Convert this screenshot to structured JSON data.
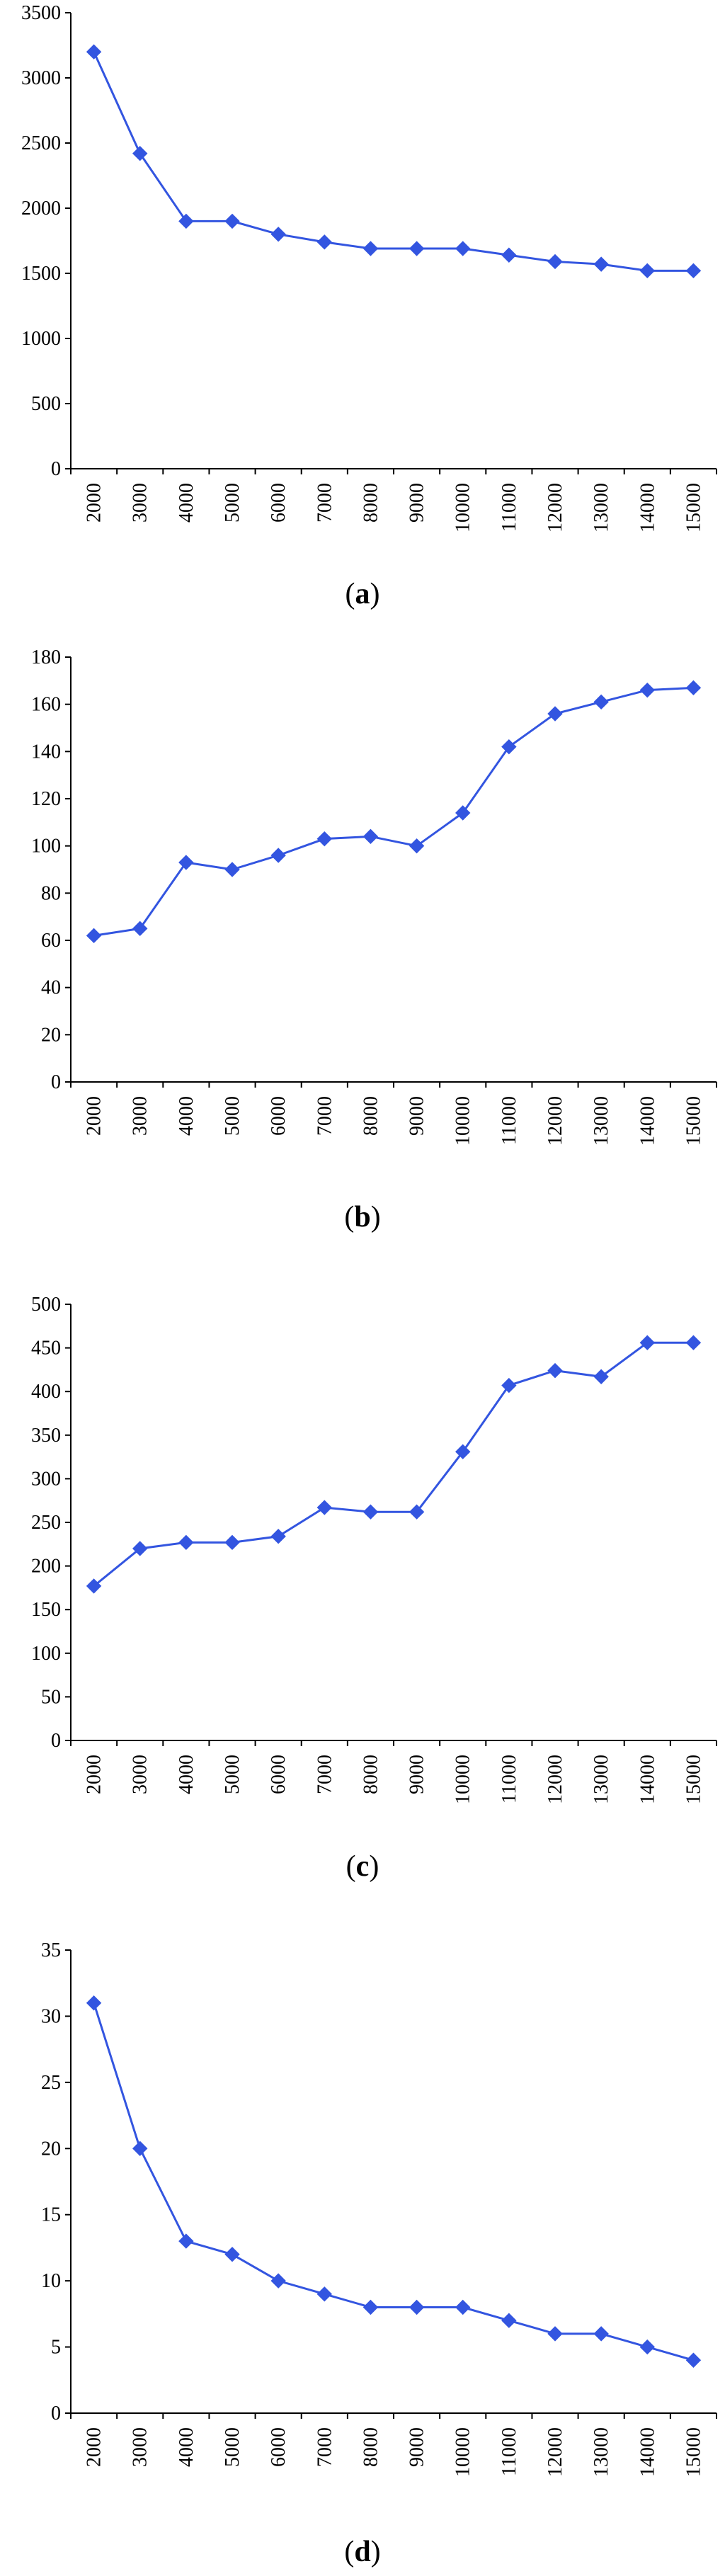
{
  "chart_data": [
    {
      "type": "line",
      "caption": "a",
      "categories": [
        "2000",
        "3000",
        "4000",
        "5000",
        "6000",
        "7000",
        "8000",
        "9000",
        "10000",
        "11000",
        "12000",
        "13000",
        "14000",
        "15000"
      ],
      "values": [
        3200,
        2420,
        1900,
        1900,
        1800,
        1740,
        1690,
        1690,
        1690,
        1640,
        1590,
        1570,
        1520,
        1520
      ],
      "ylim": [
        0,
        3500
      ],
      "yticks": [
        0,
        500,
        1000,
        1500,
        2000,
        2500,
        3000,
        3500
      ],
      "ytick_labels": [
        "0",
        "500",
        "1000",
        "1500",
        "2000",
        "2500",
        "3000",
        "3500"
      ],
      "color": "#3355e0",
      "grid": false
    },
    {
      "type": "line",
      "caption": "b",
      "categories": [
        "2000",
        "3000",
        "4000",
        "5000",
        "6000",
        "7000",
        "8000",
        "9000",
        "10000",
        "11000",
        "12000",
        "13000",
        "14000",
        "15000"
      ],
      "values": [
        62,
        65,
        93,
        90,
        96,
        103,
        104,
        100,
        114,
        142,
        156,
        161,
        166,
        167
      ],
      "ylim": [
        0,
        180
      ],
      "yticks": [
        0,
        20,
        40,
        60,
        80,
        100,
        120,
        140,
        160,
        180
      ],
      "ytick_labels": [
        "0",
        "20",
        "40",
        "60",
        "80",
        "100",
        "120",
        "140",
        "160",
        "180"
      ],
      "color": "#3355e0",
      "grid": false
    },
    {
      "type": "line",
      "caption": "c",
      "categories": [
        "2000",
        "3000",
        "4000",
        "5000",
        "6000",
        "7000",
        "8000",
        "9000",
        "10000",
        "11000",
        "12000",
        "13000",
        "14000",
        "15000"
      ],
      "values": [
        177,
        220,
        227,
        227,
        234,
        267,
        262,
        262,
        331,
        407,
        424,
        417,
        456,
        456
      ],
      "ylim": [
        0,
        500
      ],
      "yticks": [
        0,
        50,
        100,
        150,
        200,
        250,
        300,
        350,
        400,
        450,
        500
      ],
      "ytick_labels": [
        "0",
        "50",
        "100",
        "150",
        "200",
        "250",
        "300",
        "350",
        "400",
        "450",
        "500"
      ],
      "color": "#3355e0",
      "grid": false
    },
    {
      "type": "line",
      "caption": "d",
      "categories": [
        "2000",
        "3000",
        "4000",
        "5000",
        "6000",
        "7000",
        "8000",
        "9000",
        "10000",
        "11000",
        "12000",
        "13000",
        "14000",
        "15000"
      ],
      "values": [
        31,
        20,
        13,
        12,
        10,
        9,
        8,
        8,
        8,
        7,
        6,
        6,
        5,
        4
      ],
      "ylim": [
        0,
        35
      ],
      "yticks": [
        0,
        5,
        10,
        15,
        20,
        25,
        30,
        35
      ],
      "ytick_labels": [
        "0",
        "5",
        "10",
        "15",
        "20",
        "25",
        "30",
        "35"
      ],
      "color": "#3355e0",
      "grid": false
    }
  ]
}
